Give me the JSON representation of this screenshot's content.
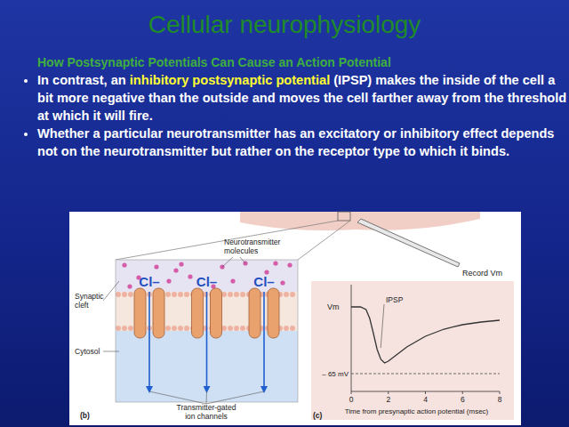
{
  "slide": {
    "title": "Cellular neurophysiology",
    "subtitle": "How Postsynaptic Potentials Can Cause an Action Potential",
    "bullets": [
      {
        "parts": [
          "In contrast, an ",
          "inhibitory postsynaptic potential",
          " (IPSP) makes the inside of the cell a bit more negative than the outside and moves the cell farther away from the threshold at which it will fire."
        ],
        "highlight": 1
      },
      {
        "parts": [
          "Whether a particular neurotransmitter has an excitatory or inhibitory effect depends not on the neurotransmitter but rather on the receptor type to which it binds."
        ]
      }
    ]
  },
  "figure": {
    "record_label": "Record Vm",
    "panel_b": {
      "label": "(b)",
      "ions": [
        "Cl–",
        "Cl–",
        "Cl–"
      ],
      "cleft_label": "Synaptic cleft",
      "cytosol_label": "Cytosol",
      "molecules_label": "Neurotransmitter molecules",
      "channels_label": "Transmitter-gated ion channels"
    }
  },
  "chart_data": {
    "type": "line",
    "panel_label": "(c)",
    "ylabel": "Vm",
    "xlabel": "Time from presynaptic action potential (msec)",
    "annotation": "IPSP",
    "x": [
      0,
      0.5,
      0.8,
      1.0,
      1.2,
      1.4,
      1.6,
      1.8,
      2.0,
      2.5,
      3,
      4,
      5,
      6,
      7,
      8
    ],
    "values": [
      -57.5,
      -57.5,
      -57.8,
      -58.8,
      -60.5,
      -62.3,
      -63.4,
      -63.8,
      -63.6,
      -62.8,
      -62,
      -60.8,
      -60,
      -59.5,
      -59.2,
      -59
    ],
    "color": "#333333",
    "xlim": [
      0,
      8
    ],
    "xticks": [
      0,
      2,
      4,
      6,
      8
    ],
    "ylim": [
      -67,
      -55
    ],
    "yticks": [
      {
        "value": -65,
        "label": "– 65 mV"
      }
    ]
  }
}
